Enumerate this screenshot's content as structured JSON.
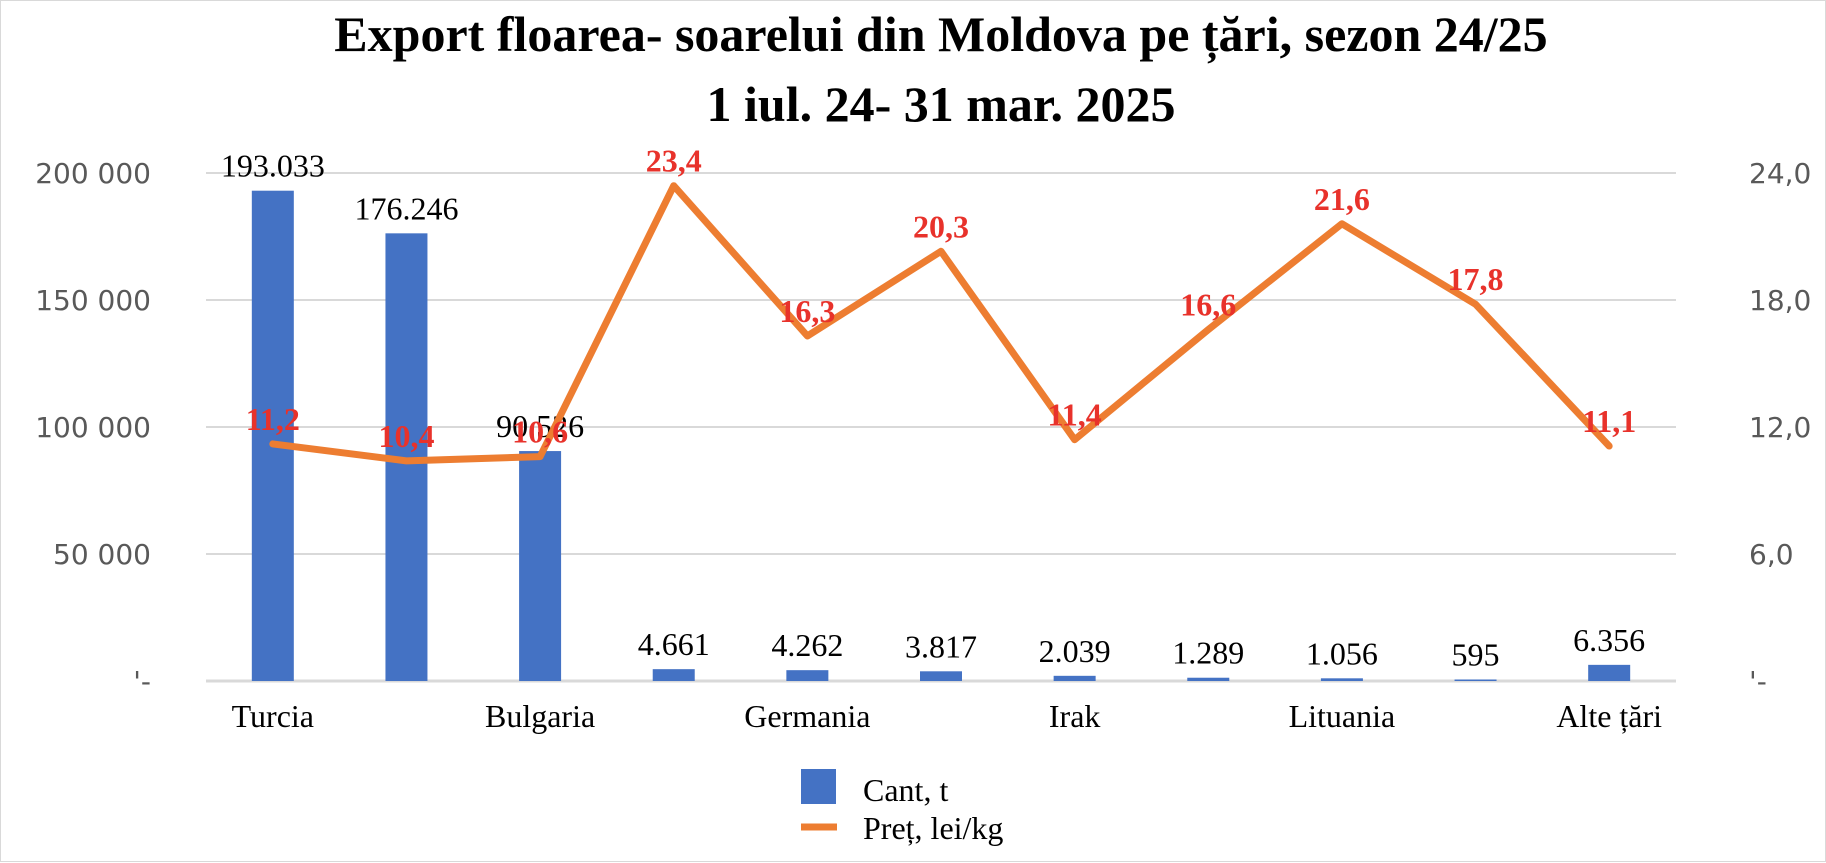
{
  "chart_data": {
    "type": "bar+line",
    "title_lines": [
      "Export floarea- soarelui din Moldova pe țări, sezon 24/25",
      "1 iul. 24- 31 mar. 2025"
    ],
    "categories": [
      "Turcia",
      "",
      "Bulgaria",
      "",
      "Germania",
      "",
      "Irak",
      "",
      "Lituania",
      "",
      "Alte țări"
    ],
    "series": [
      {
        "name": "Cant, t",
        "kind": "bar",
        "axis": "left",
        "values": [
          193033,
          176246,
          90526,
          4661,
          4262,
          3817,
          2039,
          1289,
          1056,
          595,
          6356
        ],
        "labels": [
          "193.033",
          "176.246",
          "90.526",
          "4.661",
          "4.262",
          "3.817",
          "2.039",
          "1.289",
          "1.056",
          "595",
          "6.356"
        ]
      },
      {
        "name": "Preț, lei/kg",
        "kind": "line",
        "axis": "right",
        "values": [
          11.2,
          10.4,
          10.6,
          23.4,
          16.3,
          20.3,
          11.4,
          16.6,
          21.6,
          17.8,
          11.1
        ],
        "labels": [
          "11,2",
          "10,4",
          "10,6",
          "23,4",
          "16,3",
          "20,3",
          "11,4",
          "16,6",
          "21,6",
          "17,8",
          "11,1"
        ]
      }
    ],
    "y_left": {
      "range": [
        0,
        200000
      ],
      "ticks": [
        0,
        50000,
        100000,
        150000,
        200000
      ],
      "tick_labels": [
        "'-",
        "50 000",
        "100 000",
        "150 000",
        "200 000"
      ]
    },
    "y_right": {
      "range": [
        0,
        24
      ],
      "ticks": [
        0,
        6,
        12,
        18,
        24
      ],
      "tick_labels": [
        "'-",
        "6,0",
        "12,0",
        "18,0",
        "24,0"
      ]
    },
    "grid": true,
    "legend": "bottom",
    "colors": {
      "bar": "#4472C4",
      "line": "#ED7D31",
      "line_label": "#E8322B",
      "grid": "#D9D9D9"
    }
  }
}
